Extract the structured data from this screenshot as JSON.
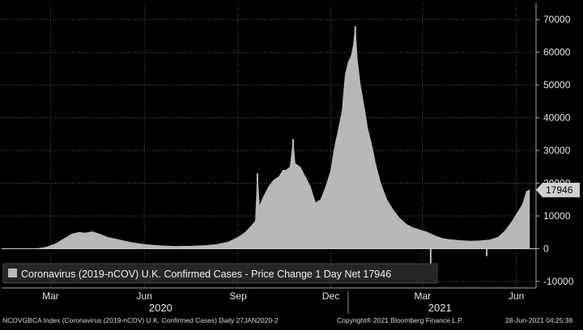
{
  "chart_data": {
    "type": "area",
    "title": "",
    "xlabel": "",
    "ylabel": "",
    "ylim": [
      -12000,
      75000
    ],
    "y_ticks": [
      -10000,
      0,
      10000,
      20000,
      30000,
      40000,
      50000,
      60000,
      70000
    ],
    "y_tick_labels": [
      "-10000",
      "0",
      "10000",
      "20000",
      "30000",
      "40000",
      "50000",
      "60000",
      "70000"
    ],
    "x_axis_type": "date",
    "x_range": [
      "2020-01-27",
      "2021-06-28"
    ],
    "month_ticks": [
      {
        "date": "2020-03-15",
        "label": "Mar"
      },
      {
        "date": "2020-06-15",
        "label": "Jun"
      },
      {
        "date": "2020-09-15",
        "label": "Sep"
      },
      {
        "date": "2020-12-15",
        "label": "Dec"
      },
      {
        "date": "2021-03-15",
        "label": "Mar"
      },
      {
        "date": "2021-06-15",
        "label": "Jun"
      }
    ],
    "year_labels": [
      {
        "date": "2020-07-01",
        "label": "2020"
      },
      {
        "date": "2021-04-01",
        "label": "2021"
      }
    ],
    "year_divider": "2021-01-01",
    "series": [
      {
        "name": "Coronavirus (2019-nCOV) U.K. Confirmed Cases - Price Change 1 Day Net",
        "color": "#b8b8b8",
        "points": [
          [
            "2020-01-27",
            0
          ],
          [
            "2020-02-20",
            0
          ],
          [
            "2020-03-01",
            30
          ],
          [
            "2020-03-10",
            400
          ],
          [
            "2020-03-20",
            1500
          ],
          [
            "2020-03-28",
            3000
          ],
          [
            "2020-04-05",
            4500
          ],
          [
            "2020-04-12",
            5000
          ],
          [
            "2020-04-18",
            4800
          ],
          [
            "2020-04-25",
            5200
          ],
          [
            "2020-05-02",
            4500
          ],
          [
            "2020-05-10",
            3500
          ],
          [
            "2020-05-20",
            2800
          ],
          [
            "2020-06-01",
            2000
          ],
          [
            "2020-06-15",
            1300
          ],
          [
            "2020-07-01",
            900
          ],
          [
            "2020-07-15",
            700
          ],
          [
            "2020-08-01",
            800
          ],
          [
            "2020-08-15",
            1000
          ],
          [
            "2020-08-25",
            1300
          ],
          [
            "2020-09-05",
            2000
          ],
          [
            "2020-09-15",
            3500
          ],
          [
            "2020-09-22",
            5000
          ],
          [
            "2020-09-28",
            7000
          ],
          [
            "2020-10-02",
            8500
          ],
          [
            "2020-10-04",
            23000
          ],
          [
            "2020-10-06",
            13000
          ],
          [
            "2020-10-10",
            16000
          ],
          [
            "2020-10-15",
            19000
          ],
          [
            "2020-10-20",
            21000
          ],
          [
            "2020-10-25",
            22000
          ],
          [
            "2020-10-29",
            24000
          ],
          [
            "2020-11-01",
            24000
          ],
          [
            "2020-11-05",
            25000
          ],
          [
            "2020-11-08",
            33000
          ],
          [
            "2020-11-10",
            26000
          ],
          [
            "2020-11-15",
            25000
          ],
          [
            "2020-11-20",
            22000
          ],
          [
            "2020-11-25",
            19000
          ],
          [
            "2020-11-30",
            14000
          ],
          [
            "2020-12-05",
            15000
          ],
          [
            "2020-12-10",
            19000
          ],
          [
            "2020-12-15",
            24000
          ],
          [
            "2020-12-18",
            30000
          ],
          [
            "2020-12-22",
            36000
          ],
          [
            "2020-12-26",
            42000
          ],
          [
            "2020-12-29",
            53000
          ],
          [
            "2021-01-01",
            57000
          ],
          [
            "2021-01-04",
            59000
          ],
          [
            "2021-01-06",
            62000
          ],
          [
            "2021-01-08",
            68000
          ],
          [
            "2021-01-10",
            58000
          ],
          [
            "2021-01-13",
            50000
          ],
          [
            "2021-01-17",
            43000
          ],
          [
            "2021-01-20",
            37000
          ],
          [
            "2021-01-24",
            32000
          ],
          [
            "2021-01-28",
            26000
          ],
          [
            "2021-02-02",
            20000
          ],
          [
            "2021-02-08",
            15000
          ],
          [
            "2021-02-14",
            12000
          ],
          [
            "2021-02-20",
            9500
          ],
          [
            "2021-02-27",
            7500
          ],
          [
            "2021-03-05",
            6500
          ],
          [
            "2021-03-12",
            5800
          ],
          [
            "2021-03-20",
            5000
          ],
          [
            "2021-03-27",
            4000
          ],
          [
            "2021-04-03",
            3200
          ],
          [
            "2021-04-10",
            2800
          ],
          [
            "2021-04-20",
            2500
          ],
          [
            "2021-05-01",
            2300
          ],
          [
            "2021-05-10",
            2400
          ],
          [
            "2021-05-20",
            2700
          ],
          [
            "2021-05-28",
            3500
          ],
          [
            "2021-06-04",
            5500
          ],
          [
            "2021-06-10",
            8000
          ],
          [
            "2021-06-16",
            11000
          ],
          [
            "2021-06-21",
            13500
          ],
          [
            "2021-06-25",
            17500
          ],
          [
            "2021-06-28",
            17946
          ]
        ],
        "spikes": [
          [
            "2020-10-04",
            23000
          ],
          [
            "2020-11-08",
            33500
          ],
          [
            "2021-01-08",
            68000
          ],
          [
            "2021-03-23",
            -5000
          ],
          [
            "2021-05-17",
            -2300
          ]
        ]
      }
    ],
    "last_value_label": "17946",
    "legend": {
      "position": "bottom-left",
      "text": "Coronavirus (2019-nCOV) U.K. Confirmed Cases - Price Change 1 Day Net 17946"
    },
    "grid": true
  },
  "footer": {
    "left": "NCOVGBCA Index (Coronavirus (2019-nCOV) U.K. Confirmed Cases)  Daily 27JAN2020-2",
    "center": "Copyright® 2021 Bloomberg Finance L.P.",
    "right": "28-Jun-2021 04:25:38"
  },
  "colors": {
    "background": "#000000",
    "series": "#b8b8b8",
    "grid": "#5a5a5a",
    "text": "#e6e6e6"
  }
}
